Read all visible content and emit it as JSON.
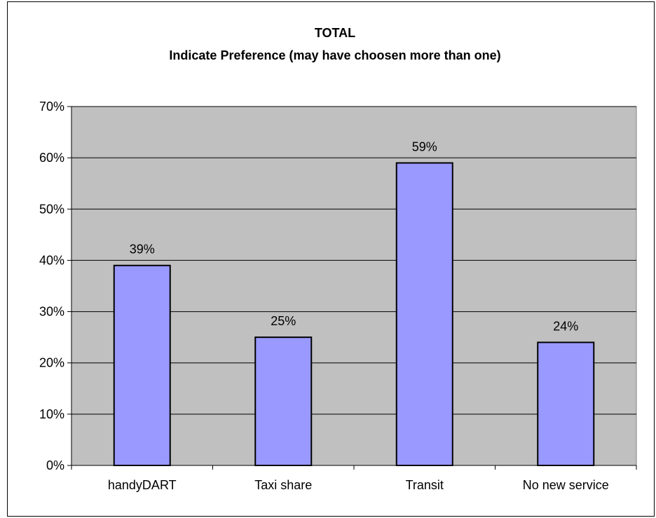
{
  "chart_data": {
    "type": "bar",
    "title": "TOTAL",
    "subtitle": "Indicate Preference (may have choosen more than one)",
    "categories": [
      "handyDART",
      "Taxi share",
      "Transit",
      "No new service"
    ],
    "values": [
      39,
      25,
      59,
      24
    ],
    "data_labels": [
      "39%",
      "25%",
      "59%",
      "24%"
    ],
    "y_ticks": [
      "0%",
      "10%",
      "20%",
      "30%",
      "40%",
      "50%",
      "60%",
      "70%"
    ],
    "ylim": [
      0,
      70
    ],
    "grid": true,
    "legend": "none",
    "colors": {
      "bar_fill": "#9999FF",
      "bar_stroke": "#000000",
      "plot_background": "#C0C0C0",
      "gridline": "#000000"
    }
  }
}
